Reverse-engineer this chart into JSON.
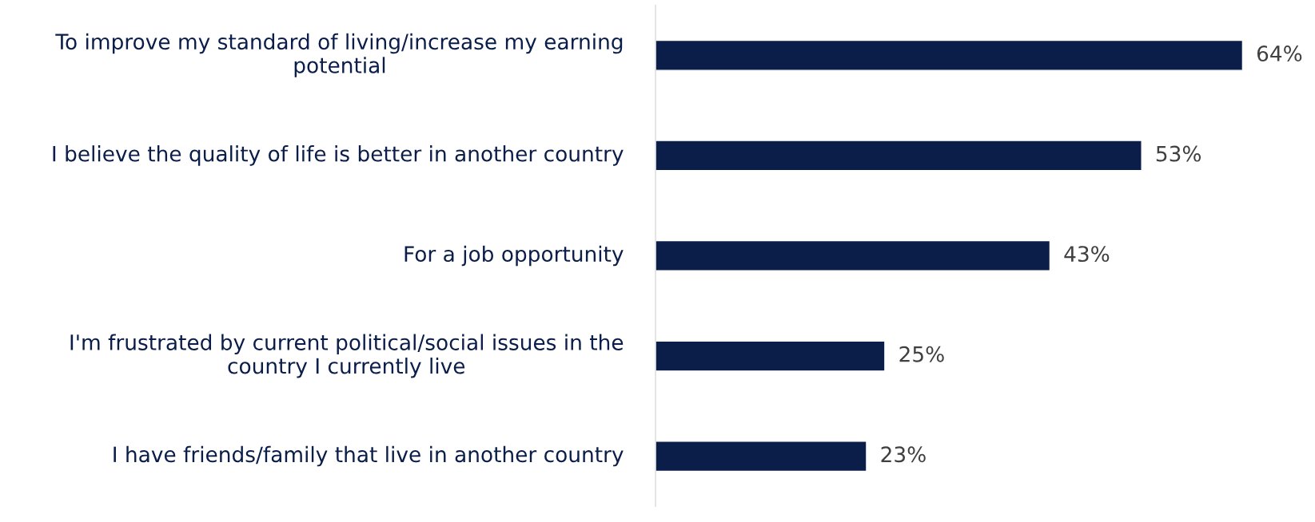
{
  "chart_data": {
    "type": "bar",
    "orientation": "horizontal",
    "categories": [
      "To improve my standard of living/increase my earning potential",
      "I believe the quality of life is better in another country",
      "For a job opportunity",
      "I'm frustrated by current political/social issues in the country I currently live",
      "I have friends/family that live in another country"
    ],
    "values": [
      64,
      53,
      43,
      25,
      23
    ],
    "color": "#0b1e4a",
    "value_labels": [
      "64%",
      "53%",
      "43%",
      "25%",
      "23%"
    ],
    "tick_labels": "y",
    "grid": false,
    "legend": false
  }
}
